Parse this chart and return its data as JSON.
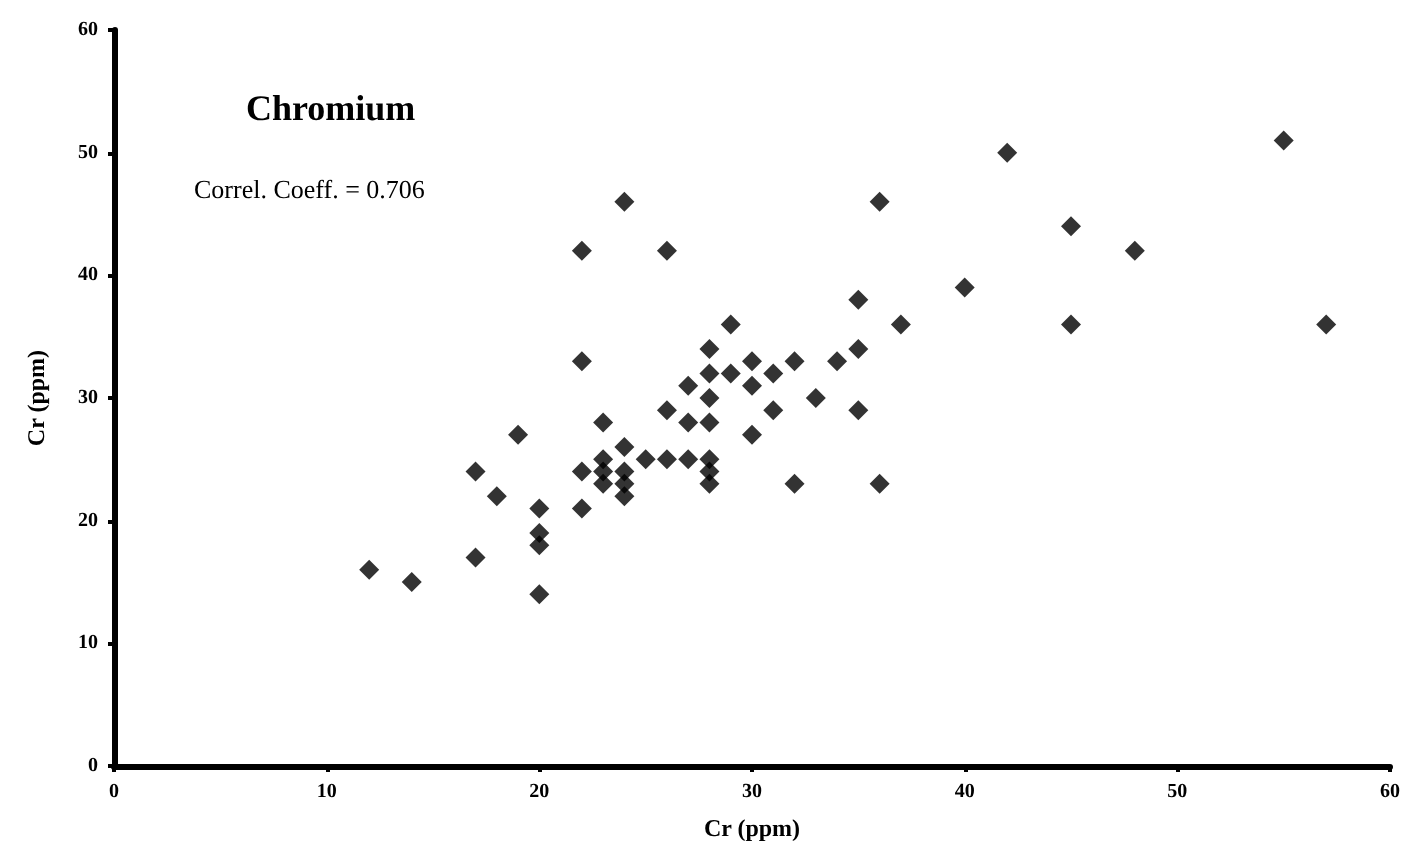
{
  "chart_data": {
    "type": "scatter",
    "title": "Chromium",
    "xlabel": "Cr (ppm)",
    "ylabel": "Cr (ppm)",
    "annotations": [
      "Correl. Coeff. = 0.706"
    ],
    "x": [
      12,
      14,
      17,
      17,
      18,
      19,
      20,
      20,
      20,
      20,
      22,
      22,
      22,
      22,
      23,
      23,
      23,
      23,
      24,
      24,
      24,
      24,
      24,
      25,
      26,
      26,
      26,
      27,
      27,
      27,
      28,
      28,
      28,
      28,
      28,
      28,
      28,
      29,
      29,
      30,
      30,
      30,
      31,
      31,
      32,
      32,
      33,
      34,
      35,
      35,
      35,
      36,
      36,
      37,
      40,
      42,
      45,
      45,
      48,
      55,
      57
    ],
    "values": [
      16,
      15,
      24,
      17,
      22,
      27,
      21,
      19,
      18,
      14,
      42,
      33,
      24,
      21,
      28,
      25,
      24,
      23,
      46,
      26,
      24,
      23,
      22,
      25,
      42,
      29,
      25,
      31,
      28,
      25,
      34,
      32,
      30,
      28,
      25,
      24,
      23,
      36,
      32,
      33,
      31,
      27,
      32,
      29,
      33,
      23,
      30,
      33,
      38,
      34,
      29,
      46,
      23,
      36,
      39,
      50,
      44,
      36,
      42,
      51,
      36
    ],
    "color": "#000000",
    "marker": "diamond",
    "xlim": [
      0,
      60
    ],
    "xticks": [
      0,
      10,
      20,
      30,
      40,
      50,
      60
    ],
    "ylim": [
      0,
      60
    ],
    "yticks": [
      0,
      10,
      20,
      30,
      40,
      50,
      60
    ],
    "grid": false
  }
}
